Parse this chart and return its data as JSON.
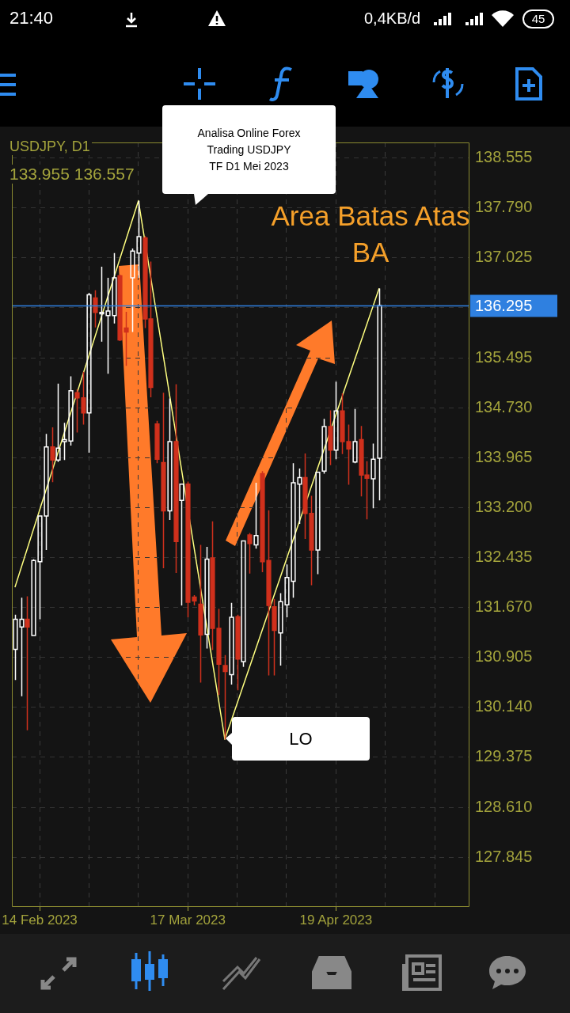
{
  "chart_data": {
    "type": "candlestick",
    "title": "USDJPY, D1",
    "subtitle": "133.955 136.557",
    "categories": [
      null,
      null,
      null,
      null,
      "14 Feb 2023",
      null,
      null,
      null,
      null,
      null,
      null,
      null,
      null,
      null,
      null,
      null,
      null,
      null,
      null,
      null,
      null,
      null,
      null,
      null,
      null,
      null,
      null,
      null,
      "17 Mar 2023",
      null,
      null,
      null,
      null,
      null,
      null,
      null,
      null,
      null,
      null,
      null,
      null,
      null,
      null,
      null,
      null,
      null,
      null,
      null,
      null,
      null,
      null,
      null,
      "19 Apr 2023",
      null,
      null,
      null,
      null,
      null,
      null,
      null,
      null,
      null,
      null,
      null,
      null,
      null,
      null,
      null,
      null,
      null,
      null,
      null,
      null,
      null
    ],
    "ohlc": [
      [
        131.03,
        131.56,
        130.56,
        131.49
      ],
      [
        131.37,
        131.82,
        130.31,
        131.49
      ],
      [
        131.49,
        131.84,
        129.79,
        131.37
      ],
      [
        131.24,
        132.41,
        131.24,
        132.39
      ],
      [
        132.37,
        133.07,
        131.49,
        133.07
      ],
      [
        133.07,
        134.33,
        132.55,
        134.13
      ],
      [
        134.13,
        134.43,
        133.59,
        133.93
      ],
      [
        133.93,
        135.1,
        133.9,
        134.11
      ],
      [
        134.21,
        134.5,
        133.93,
        134.24
      ],
      [
        134.22,
        135.21,
        134.15,
        134.99
      ],
      [
        134.96,
        135.01,
        134.35,
        134.88
      ],
      [
        134.88,
        135.28,
        134.47,
        134.65
      ],
      [
        134.65,
        136.49,
        134.04,
        136.46
      ],
      [
        136.41,
        136.53,
        135.96,
        136.19
      ],
      [
        136.17,
        136.89,
        135.74,
        136.19
      ],
      [
        136.14,
        136.72,
        135.25,
        136.21
      ],
      [
        136.14,
        137.1,
        136.02,
        136.72
      ],
      [
        136.75,
        136.77,
        135.75,
        135.77
      ],
      [
        135.95,
        136.2,
        135.37,
        135.89
      ],
      [
        136.72,
        137.17,
        135.89,
        137.13
      ],
      [
        137.1,
        137.9,
        136.72,
        137.35
      ],
      [
        137.33,
        137.36,
        135.95,
        136.09
      ],
      [
        136.09,
        136.97,
        134.89,
        135.04
      ],
      [
        134.48,
        134.53,
        133.88,
        133.94
      ],
      [
        133.89,
        134.96,
        132.27,
        133.15
      ],
      [
        133.15,
        134.87,
        133.01,
        134.21
      ],
      [
        134.21,
        135.09,
        132.2,
        132.68
      ],
      [
        133.31,
        133.56,
        131.7,
        133.56
      ],
      [
        133.56,
        133.6,
        131.52,
        131.75
      ],
      [
        131.83,
        131.86,
        131.7,
        131.77
      ],
      [
        131.72,
        132.63,
        130.52,
        131.25
      ],
      [
        131.26,
        132.6,
        131.04,
        132.41
      ],
      [
        132.43,
        132.99,
        131.02,
        131.35
      ],
      [
        131.35,
        131.65,
        130.33,
        130.8
      ],
      [
        130.78,
        130.94,
        129.65,
        130.69
      ],
      [
        130.64,
        131.74,
        130.49,
        131.52
      ],
      [
        131.53,
        131.56,
        130.4,
        130.88
      ],
      [
        130.84,
        132.69,
        130.76,
        132.69
      ],
      [
        132.78,
        132.81,
        132.19,
        132.65
      ],
      [
        132.63,
        133.58,
        132.57,
        132.77
      ],
      [
        133.72,
        133.76,
        132.21,
        132.37
      ],
      [
        132.39,
        133.16,
        130.63,
        131.7
      ],
      [
        131.68,
        131.8,
        130.63,
        131.32
      ],
      [
        131.28,
        131.89,
        130.78,
        131.76
      ],
      [
        131.71,
        132.33,
        131.52,
        132.13
      ],
      [
        132.07,
        133.88,
        131.82,
        133.58
      ],
      [
        133.56,
        133.8,
        132.95,
        133.66
      ],
      [
        133.66,
        134.03,
        132.72,
        133.11
      ],
      [
        133.11,
        133.38,
        132.01,
        132.55
      ],
      [
        132.55,
        133.74,
        132.18,
        133.74
      ],
      [
        133.76,
        134.56,
        133.72,
        134.44
      ],
      [
        134.44,
        134.69,
        133.85,
        134.08
      ],
      [
        134.08,
        135.13,
        133.94,
        134.68
      ],
      [
        134.68,
        134.95,
        134.02,
        134.21
      ],
      [
        134.21,
        134.47,
        133.55,
        134.1
      ],
      [
        133.9,
        134.71,
        133.88,
        134.21
      ],
      [
        134.24,
        134.45,
        133.37,
        133.7
      ],
      [
        133.7,
        133.91,
        133.02,
        133.65
      ],
      [
        133.64,
        134.18,
        133.19,
        133.94
      ],
      [
        133.955,
        136.557,
        133.31,
        136.295
      ],
      null,
      null,
      null,
      null,
      null,
      null,
      null,
      null,
      null,
      null,
      null,
      null,
      null,
      null
    ],
    "colors": [
      "#ffffff",
      "#ffffff",
      "#d0301c",
      "#ffffff",
      "#ffffff",
      "#ffffff",
      "#d0301c",
      "#ffffff",
      "#ffffff",
      "#ffffff",
      "#d0301c",
      "#d0301c",
      "#ffffff",
      "#d0301c",
      "#ffffff",
      "#ffffff",
      "#ffffff",
      "#d0301c",
      "#d0301c",
      "#ffffff",
      "#ffffff",
      "#d0301c",
      "#d0301c",
      "#d0301c",
      "#d0301c",
      "#ffffff",
      "#d0301c",
      "#ffffff",
      "#d0301c",
      "#d0301c",
      "#d0301c",
      "#ffffff",
      "#d0301c",
      "#d0301c",
      "#d0301c",
      "#ffffff",
      "#d0301c",
      "#ffffff",
      "#d0301c",
      "#ffffff",
      "#d0301c",
      "#d0301c",
      "#d0301c",
      "#ffffff",
      "#ffffff",
      "#ffffff",
      "#ffffff",
      "#d0301c",
      "#d0301c",
      "#ffffff",
      "#ffffff",
      "#d0301c",
      "#ffffff",
      "#d0301c",
      "#d0301c",
      "#ffffff",
      "#d0301c",
      "#d0301c",
      "#ffffff",
      "#ffffff",
      null,
      null,
      null,
      null,
      null,
      null,
      null,
      null,
      null,
      null,
      null,
      null,
      null,
      null
    ],
    "series": [
      {
        "type": "line",
        "color": "#ffff80",
        "values": [
          131.98,
          null,
          null,
          null,
          null,
          null,
          null,
          null,
          null,
          null,
          null,
          null,
          null,
          null,
          null,
          null,
          null,
          null,
          null,
          null,
          137.9,
          null,
          null,
          null,
          null,
          null,
          null,
          null,
          null,
          null,
          null,
          null,
          null,
          null,
          129.65,
          null,
          null,
          null,
          null,
          null,
          null,
          null,
          null,
          null,
          null,
          null,
          null,
          null,
          null,
          null,
          null,
          null,
          null,
          null,
          null,
          null,
          null,
          null,
          null,
          136.56,
          null,
          null,
          null,
          null,
          null,
          null,
          null,
          null,
          null,
          null,
          null,
          null,
          null,
          null
        ]
      }
    ],
    "ylim": [
      127.095,
      138.793
    ],
    "yticks": [
      138.555,
      {
        "value": 137.79,
        "label": "137.790"
      },
      137.025,
      {
        "value": 136.26,
        "label": null
      },
      135.495,
      {
        "value": 134.73,
        "label": "134.730"
      },
      133.965,
      {
        "value": 133.2,
        "label": "133.200"
      },
      132.435,
      {
        "value": 131.67,
        "label": "131.670"
      },
      130.905,
      {
        "value": 130.14,
        "label": "130.140"
      },
      129.375,
      {
        "value": 128.61,
        "label": "128.610"
      },
      127.845
    ],
    "grid": true,
    "ref_lines": [
      {
        "axis": "y",
        "value": 136.295,
        "label": "136.295",
        "color": "#2f80e0"
      }
    ],
    "annotations": [
      "Analisa Online Forex\nTrading USDJPY\nTF D1 Mei 2023",
      "Area Batas Atas\nBA",
      "LO",
      "21:40",
      "0,4KB/d",
      "45"
    ]
  }
}
